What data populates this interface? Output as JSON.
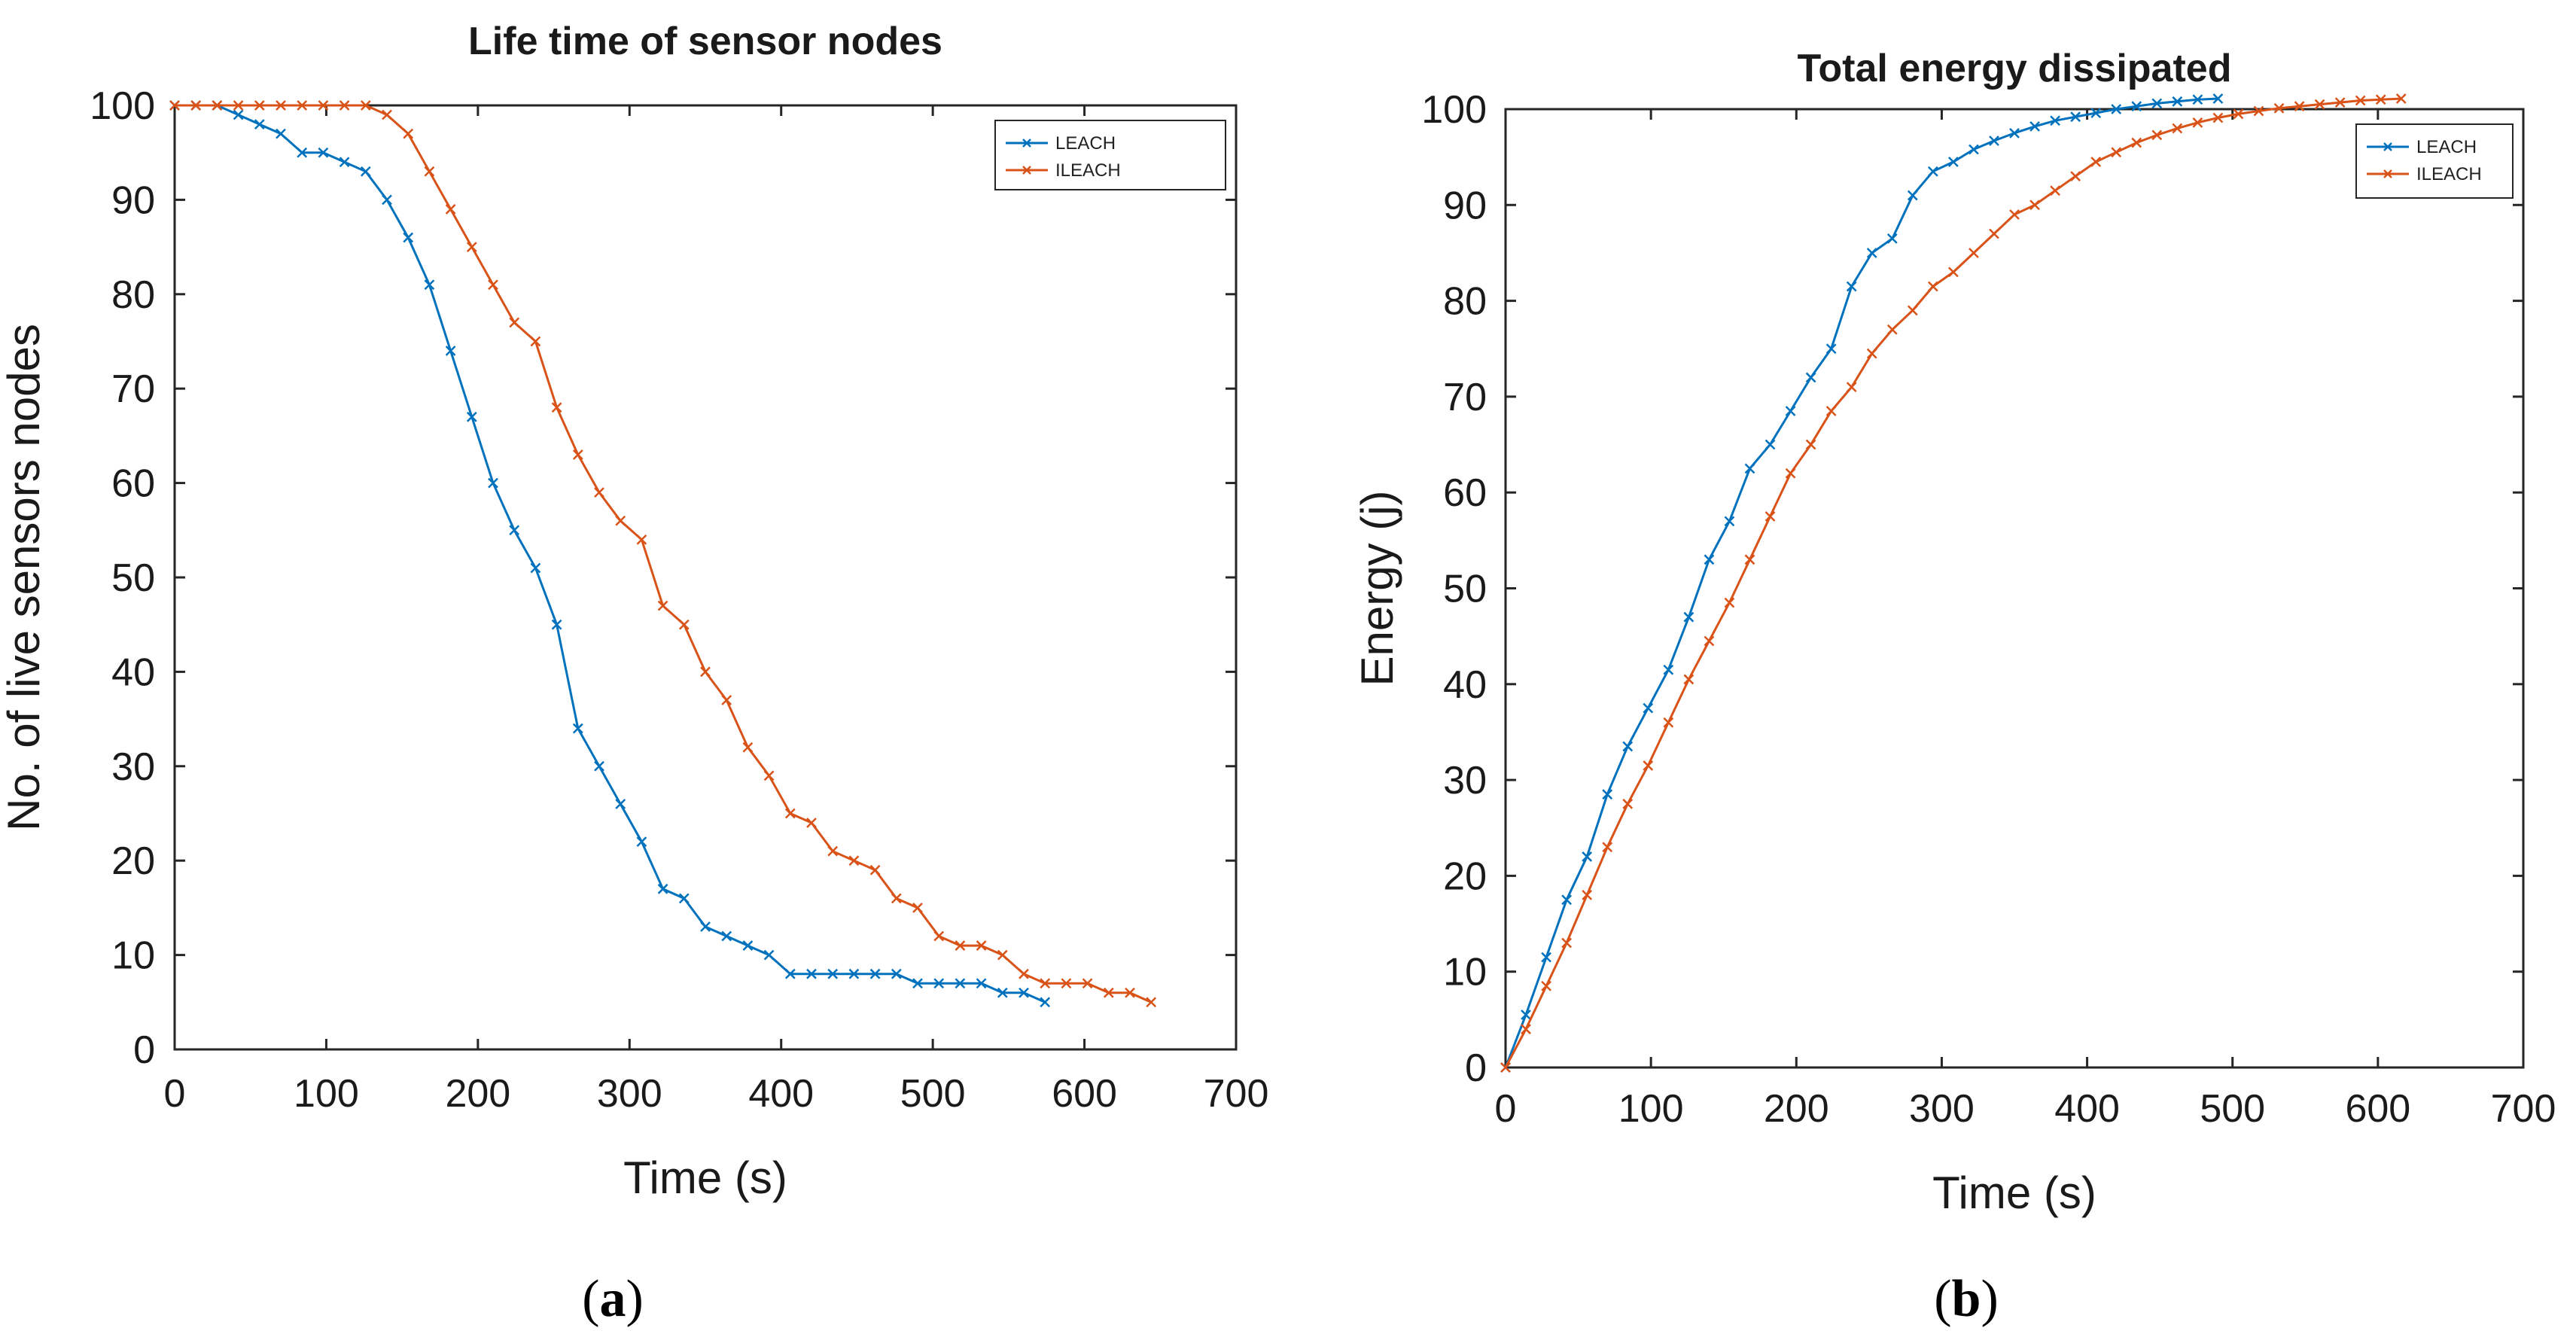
{
  "colors": {
    "LEACH": "#0072BD",
    "ILEACH": "#D95319"
  },
  "captions": [
    "a",
    "b"
  ],
  "chart_data": [
    {
      "type": "line",
      "title": "Life time of sensor nodes",
      "xlabel": "Time (s)",
      "ylabel": "No. of live sensors nodes",
      "xlim": [
        0,
        700
      ],
      "ylim": [
        0,
        100
      ],
      "xticks": [
        0,
        100,
        200,
        300,
        400,
        500,
        600,
        700
      ],
      "yticks": [
        0,
        10,
        20,
        30,
        40,
        50,
        60,
        70,
        80,
        90,
        100
      ],
      "legend_position": "top-right",
      "series": [
        {
          "name": "LEACH",
          "x": [
            0,
            14,
            28,
            42,
            56,
            70,
            84,
            98,
            112,
            126,
            140,
            154,
            168,
            182,
            196,
            210,
            224,
            238,
            252,
            266,
            280,
            294,
            308,
            322,
            336,
            350,
            364,
            378,
            392,
            406,
            420,
            434,
            448,
            462,
            476,
            490,
            504,
            518,
            532,
            546,
            560,
            574
          ],
          "y": [
            100,
            100,
            100,
            99,
            98,
            97,
            95,
            95,
            94,
            93,
            90,
            86,
            81,
            74,
            67,
            60,
            55,
            51,
            45,
            34,
            30,
            26,
            22,
            17,
            16,
            13,
            12,
            11,
            10,
            8,
            8,
            8,
            8,
            8,
            8,
            7,
            7,
            7,
            7,
            6,
            6,
            5
          ]
        },
        {
          "name": "ILEACH",
          "x": [
            0,
            14,
            28,
            42,
            56,
            70,
            84,
            98,
            112,
            126,
            140,
            154,
            168,
            182,
            196,
            210,
            224,
            238,
            252,
            266,
            280,
            294,
            308,
            322,
            336,
            350,
            364,
            378,
            392,
            406,
            420,
            434,
            448,
            462,
            476,
            490,
            504,
            518,
            532,
            546,
            560,
            574,
            588,
            602,
            616,
            630,
            644
          ],
          "y": [
            100,
            100,
            100,
            100,
            100,
            100,
            100,
            100,
            100,
            100,
            99,
            97,
            93,
            89,
            85,
            81,
            77,
            75,
            68,
            63,
            59,
            56,
            54,
            47,
            45,
            40,
            37,
            32,
            29,
            25,
            24,
            21,
            20,
            19,
            16,
            15,
            12,
            11,
            11,
            10,
            8,
            7,
            7,
            7,
            6,
            6,
            5
          ]
        }
      ]
    },
    {
      "type": "line",
      "title": "Total energy dissipated",
      "xlabel": "Time (s)",
      "ylabel": "Energy (j)",
      "xlim": [
        0,
        700
      ],
      "ylim": [
        0,
        100
      ],
      "xticks": [
        0,
        100,
        200,
        300,
        400,
        500,
        600,
        700
      ],
      "yticks": [
        0,
        10,
        20,
        30,
        40,
        50,
        60,
        70,
        80,
        90,
        100
      ],
      "legend_position": "top-right",
      "series": [
        {
          "name": "LEACH",
          "x": [
            0,
            14,
            28,
            42,
            56,
            70,
            84,
            98,
            112,
            126,
            140,
            154,
            168,
            182,
            196,
            210,
            224,
            238,
            252,
            266,
            280,
            294,
            308,
            322,
            336,
            350,
            364,
            378,
            392,
            406,
            420,
            434,
            448,
            462,
            476,
            490
          ],
          "y": [
            0,
            5.5,
            11.5,
            17.5,
            22,
            28.5,
            33.5,
            37.5,
            41.5,
            47,
            53,
            57,
            62.5,
            65,
            68.5,
            72,
            75,
            81.5,
            85,
            86.5,
            91,
            93.5,
            94.5,
            95.8,
            96.7,
            97.5,
            98.2,
            98.8,
            99.2,
            99.6,
            100,
            100.3,
            100.6,
            100.8,
            101,
            101.1
          ]
        },
        {
          "name": "ILEACH",
          "x": [
            0,
            14,
            28,
            42,
            56,
            70,
            84,
            98,
            112,
            126,
            140,
            154,
            168,
            182,
            196,
            210,
            224,
            238,
            252,
            266,
            280,
            294,
            308,
            322,
            336,
            350,
            364,
            378,
            392,
            406,
            420,
            434,
            448,
            462,
            476,
            490,
            504,
            518,
            532,
            546,
            560,
            574,
            588,
            602,
            616
          ],
          "y": [
            0,
            4,
            8.5,
            13,
            18,
            23,
            27.5,
            31.5,
            36,
            40.5,
            44.5,
            48.5,
            53,
            57.5,
            62,
            65,
            68.5,
            71,
            74.5,
            77,
            79,
            81.5,
            83,
            85,
            87,
            89,
            90,
            91.5,
            93,
            94.5,
            95.5,
            96.5,
            97.3,
            98,
            98.6,
            99.1,
            99.5,
            99.8,
            100.1,
            100.3,
            100.5,
            100.7,
            100.9,
            101,
            101.1
          ]
        }
      ]
    }
  ]
}
